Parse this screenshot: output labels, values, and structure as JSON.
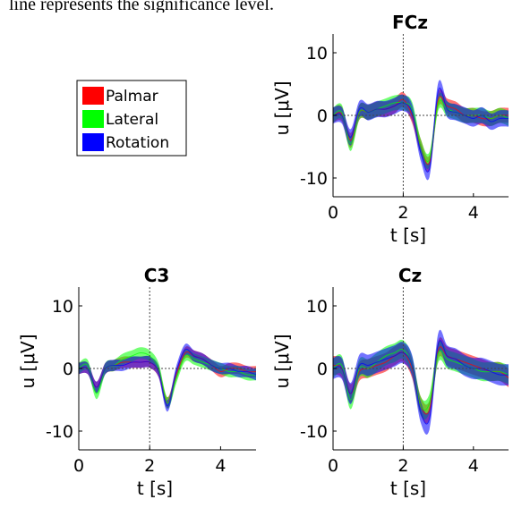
{
  "caption_fragment": "line represents the significance level.",
  "legend": {
    "entries": [
      {
        "label": "Palmar",
        "color": "#ff0000"
      },
      {
        "label": "Lateral",
        "color": "#00ff00"
      },
      {
        "label": "Rotation",
        "color": "#0000ff"
      }
    ]
  },
  "chart_data": [
    {
      "type": "area",
      "title": "FCz",
      "xlabel": "t [s]",
      "ylabel": "u [μV]",
      "xlim": [
        0,
        5
      ],
      "ylim": [
        -13,
        13
      ],
      "xticks": [
        "0",
        "2",
        "4"
      ],
      "yticks": [
        "10",
        "0",
        "-10"
      ],
      "marker_x": 2,
      "significance_level": 0,
      "x": [
        0,
        0.25,
        0.5,
        0.75,
        1.0,
        1.25,
        1.5,
        1.75,
        2.0,
        2.25,
        2.5,
        2.75,
        3.0,
        3.25,
        3.5,
        3.75,
        4.0,
        4.25,
        4.5,
        4.75,
        5.0
      ],
      "series": [
        {
          "name": "Palmar",
          "color": "#ff0000",
          "mean": [
            0,
            0.2,
            -4,
            0.5,
            0.5,
            1,
            1,
            1.5,
            2.5,
            0,
            -5,
            -7.5,
            2.5,
            1.5,
            1,
            0,
            0,
            -0.5,
            -0.5,
            0,
            0
          ],
          "width": 1.2
        },
        {
          "name": "Lateral",
          "color": "#00ff00",
          "mean": [
            0,
            0.5,
            -4.5,
            0.5,
            0.5,
            1,
            1.5,
            2,
            2,
            1,
            -5,
            -7,
            2,
            1,
            0.5,
            0,
            0,
            0,
            -0.5,
            0,
            -0.5
          ],
          "width": 1.2
        },
        {
          "name": "Rotation",
          "color": "#0000ff",
          "mean": [
            0,
            0,
            -3.5,
            1,
            0.5,
            1,
            1,
            1.5,
            2,
            0.5,
            -6,
            -8.5,
            4,
            1,
            0.5,
            0,
            -0.5,
            0,
            -1,
            -0.5,
            -0.5
          ],
          "width": 1.3
        }
      ]
    },
    {
      "type": "area",
      "title": "C3",
      "xlabel": "t [s]",
      "ylabel": "u [μV]",
      "xlim": [
        0,
        5
      ],
      "ylim": [
        -13,
        13
      ],
      "xticks": [
        "0",
        "2",
        "4"
      ],
      "yticks": [
        "10",
        "0",
        "-10"
      ],
      "marker_x": 2,
      "significance_level": 0,
      "x": [
        0,
        0.25,
        0.5,
        0.75,
        1.0,
        1.25,
        1.5,
        1.75,
        2.0,
        2.25,
        2.5,
        2.75,
        3.0,
        3.25,
        3.5,
        3.75,
        4.0,
        4.25,
        4.5,
        4.75,
        5.0
      ],
      "series": [
        {
          "name": "Palmar",
          "color": "#ff0000",
          "mean": [
            0,
            0,
            -3,
            0,
            0.5,
            1,
            1,
            1,
            1,
            -0.5,
            -5.5,
            -1,
            2.5,
            2,
            1.5,
            0.5,
            -0.5,
            0,
            0,
            -0.5,
            -0.5
          ],
          "width": 0.9
        },
        {
          "name": "Lateral",
          "color": "#00ff00",
          "mean": [
            0,
            0.5,
            -4,
            0,
            0.5,
            1.5,
            2,
            2.5,
            2,
            0,
            -5.5,
            -1.5,
            2,
            1.5,
            1,
            0.5,
            0,
            -0.5,
            -0.5,
            -1,
            -1
          ],
          "width": 0.9
        },
        {
          "name": "Rotation",
          "color": "#0000ff",
          "mean": [
            0,
            0,
            -3,
            0,
            0.5,
            0.5,
            1,
            1,
            1,
            -0.5,
            -6,
            -0.5,
            3,
            2,
            1.5,
            0.5,
            0,
            0,
            -0.5,
            -0.5,
            -1
          ],
          "width": 0.9
        }
      ]
    },
    {
      "type": "area",
      "title": "Cz",
      "xlabel": "t [s]",
      "ylabel": "u [μV]",
      "xlim": [
        0,
        5
      ],
      "ylim": [
        -13,
        13
      ],
      "xticks": [
        "0",
        "2",
        "4"
      ],
      "yticks": [
        "10",
        "0",
        "-10"
      ],
      "marker_x": 2,
      "significance_level": 0,
      "x": [
        0,
        0.25,
        0.5,
        0.75,
        1.0,
        1.25,
        1.5,
        1.75,
        2.0,
        2.25,
        2.5,
        2.75,
        3.0,
        3.25,
        3.5,
        3.75,
        4.0,
        4.25,
        4.5,
        4.75,
        5.0
      ],
      "series": [
        {
          "name": "Palmar",
          "color": "#ff0000",
          "mean": [
            0.5,
            0,
            -4,
            -0.5,
            0,
            0.5,
            1,
            2,
            2.5,
            0,
            -6,
            -6.5,
            3,
            2,
            1.5,
            1,
            0.5,
            0,
            -0.5,
            -0.5,
            -1.5
          ],
          "width": 1.5
        },
        {
          "name": "Lateral",
          "color": "#00ff00",
          "mean": [
            0,
            0.5,
            -5,
            0,
            0,
            1,
            2,
            2.5,
            3,
            0.5,
            -6,
            -5.5,
            2.5,
            1.5,
            1,
            0.5,
            0,
            -0.5,
            -0.5,
            -0.5,
            -1
          ],
          "width": 1.5
        },
        {
          "name": "Rotation",
          "color": "#0000ff",
          "mean": [
            0,
            0,
            -4,
            0.5,
            0.5,
            1,
            1.5,
            2,
            2.5,
            0.5,
            -7,
            -8,
            4,
            2,
            1.5,
            0.5,
            0,
            0,
            -0.5,
            -1,
            -1
          ],
          "width": 1.7
        }
      ]
    }
  ]
}
